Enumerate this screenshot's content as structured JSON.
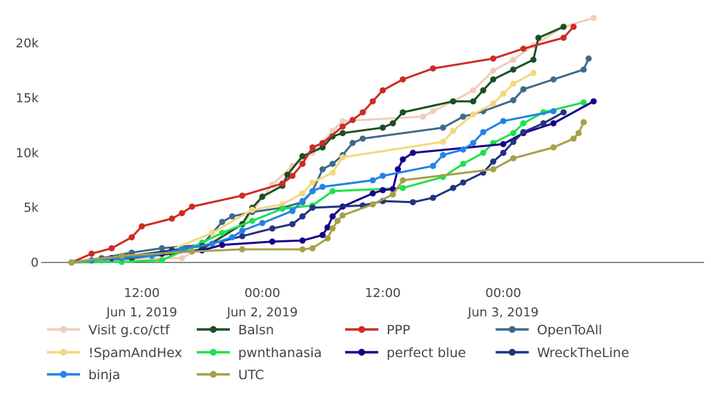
{
  "chart_data": {
    "type": "line",
    "title": "",
    "xlabel": "",
    "ylabel": "",
    "xlim": [
      "2019-06-01T02:00",
      "2019-06-03T20:00"
    ],
    "ylim": [
      0,
      23000
    ],
    "x_ticks": [
      {
        "at": "2019-06-01T12:00",
        "time": "12:00",
        "date": "Jun 1, 2019"
      },
      {
        "at": "2019-06-02T00:00",
        "time": "00:00",
        "date": "Jun 2, 2019"
      },
      {
        "at": "2019-06-02T12:00",
        "time": "12:00",
        "date": ""
      },
      {
        "at": "2019-06-03T00:00",
        "time": "00:00",
        "date": "Jun 3, 2019"
      }
    ],
    "y_ticks": [
      {
        "value": 0,
        "label": "0"
      },
      {
        "value": 5000,
        "label": "5k"
      },
      {
        "value": 10000,
        "label": "10k"
      },
      {
        "value": 15000,
        "label": "15k"
      },
      {
        "value": 20000,
        "label": "20k"
      }
    ],
    "grid": false,
    "legend_position": "bottom",
    "series": [
      {
        "name": "Visit g.co/ctf",
        "color": "#f0cdb9",
        "points": [
          [
            "2019-06-01T05:00",
            0
          ],
          [
            "2019-06-01T07:00",
            100
          ],
          [
            "2019-06-01T10:00",
            150
          ],
          [
            "2019-06-01T14:00",
            400
          ],
          [
            "2019-06-01T16:00",
            400
          ],
          [
            "2019-06-01T18:00",
            1400
          ],
          [
            "2019-06-01T22:00",
            3400
          ],
          [
            "2019-06-02T01:00",
            7100
          ],
          [
            "2019-06-02T03:00",
            8800
          ],
          [
            "2019-06-02T05:00",
            10000
          ],
          [
            "2019-06-02T07:00",
            12000
          ],
          [
            "2019-06-02T08:00",
            12900
          ],
          [
            "2019-06-02T16:00",
            13300
          ],
          [
            "2019-06-02T17:00",
            13800
          ],
          [
            "2019-06-02T19:00",
            14700
          ],
          [
            "2019-06-02T21:00",
            15700
          ],
          [
            "2019-06-02T23:00",
            17500
          ],
          [
            "2019-06-03T01:00",
            18500
          ],
          [
            "2019-06-03T03:00",
            19800
          ],
          [
            "2019-06-03T06:00",
            21500
          ],
          [
            "2019-06-03T09:00",
            22300
          ]
        ]
      },
      {
        "name": "Balsn",
        "color": "#1c4f23",
        "points": [
          [
            "2019-06-01T05:00",
            0
          ],
          [
            "2019-06-01T08:00",
            200
          ],
          [
            "2019-06-01T11:00",
            400
          ],
          [
            "2019-06-01T15:00",
            800
          ],
          [
            "2019-06-01T18:00",
            1200
          ],
          [
            "2019-06-01T22:00",
            3500
          ],
          [
            "2019-06-01T23:00",
            5000
          ],
          [
            "2019-06-02T00:00",
            6000
          ],
          [
            "2019-06-02T02:00",
            7000
          ],
          [
            "2019-06-02T02:30",
            8000
          ],
          [
            "2019-06-02T04:00",
            9700
          ],
          [
            "2019-06-02T06:00",
            10500
          ],
          [
            "2019-06-02T07:00",
            11500
          ],
          [
            "2019-06-02T08:00",
            11800
          ],
          [
            "2019-06-02T12:00",
            12300
          ],
          [
            "2019-06-02T13:00",
            12700
          ],
          [
            "2019-06-02T14:00",
            13700
          ],
          [
            "2019-06-02T19:00",
            14700
          ],
          [
            "2019-06-02T21:00",
            14700
          ],
          [
            "2019-06-02T22:00",
            15700
          ],
          [
            "2019-06-02T23:00",
            16700
          ],
          [
            "2019-06-03T01:00",
            17600
          ],
          [
            "2019-06-03T03:00",
            18500
          ],
          [
            "2019-06-03T03:30",
            20500
          ],
          [
            "2019-06-03T06:00",
            21500
          ]
        ]
      },
      {
        "name": "PPP",
        "color": "#cc2c25",
        "points": [
          [
            "2019-06-01T05:00",
            0
          ],
          [
            "2019-06-01T07:00",
            800
          ],
          [
            "2019-06-01T09:00",
            1300
          ],
          [
            "2019-06-01T11:00",
            2300
          ],
          [
            "2019-06-01T12:00",
            3300
          ],
          [
            "2019-06-01T15:00",
            4000
          ],
          [
            "2019-06-01T16:00",
            4500
          ],
          [
            "2019-06-01T17:00",
            5100
          ],
          [
            "2019-06-01T22:00",
            6100
          ],
          [
            "2019-06-02T02:00",
            7200
          ],
          [
            "2019-06-02T03:00",
            7900
          ],
          [
            "2019-06-02T04:00",
            9000
          ],
          [
            "2019-06-02T05:00",
            10500
          ],
          [
            "2019-06-02T06:00",
            10900
          ],
          [
            "2019-06-02T08:00",
            12400
          ],
          [
            "2019-06-02T09:00",
            13000
          ],
          [
            "2019-06-02T10:00",
            13700
          ],
          [
            "2019-06-02T11:00",
            14700
          ],
          [
            "2019-06-02T12:00",
            15700
          ],
          [
            "2019-06-02T14:00",
            16700
          ],
          [
            "2019-06-02T17:00",
            17700
          ],
          [
            "2019-06-02T23:00",
            18600
          ],
          [
            "2019-06-03T02:00",
            19500
          ],
          [
            "2019-06-03T06:00",
            20500
          ],
          [
            "2019-06-03T07:00",
            21500
          ]
        ]
      },
      {
        "name": "OpenToAll",
        "color": "#3f6a8a",
        "points": [
          [
            "2019-06-01T05:00",
            0
          ],
          [
            "2019-06-01T08:00",
            400
          ],
          [
            "2019-06-01T11:00",
            900
          ],
          [
            "2019-06-01T14:00",
            1300
          ],
          [
            "2019-06-01T18:00",
            1600
          ],
          [
            "2019-06-01T20:00",
            3700
          ],
          [
            "2019-06-01T21:00",
            4200
          ],
          [
            "2019-06-01T23:00",
            4600
          ],
          [
            "2019-06-02T02:00",
            5000
          ],
          [
            "2019-06-02T04:00",
            5500
          ],
          [
            "2019-06-02T05:00",
            6500
          ],
          [
            "2019-06-02T06:00",
            8500
          ],
          [
            "2019-06-02T07:00",
            9000
          ],
          [
            "2019-06-02T08:00",
            9800
          ],
          [
            "2019-06-02T09:00",
            10900
          ],
          [
            "2019-06-02T10:00",
            11300
          ],
          [
            "2019-06-02T18:00",
            12300
          ],
          [
            "2019-06-02T20:00",
            13300
          ],
          [
            "2019-06-02T22:00",
            13800
          ],
          [
            "2019-06-03T01:00",
            14800
          ],
          [
            "2019-06-03T02:00",
            15800
          ],
          [
            "2019-06-03T05:00",
            16700
          ],
          [
            "2019-06-03T08:00",
            17600
          ],
          [
            "2019-06-03T08:30",
            18600
          ]
        ]
      },
      {
        "name": "!SpamAndHex",
        "color": "#f2d87e",
        "points": [
          [
            "2019-06-01T05:00",
            0
          ],
          [
            "2019-06-01T09:00",
            300
          ],
          [
            "2019-06-01T14:00",
            800
          ],
          [
            "2019-06-01T19:00",
            2700
          ],
          [
            "2019-06-01T23:00",
            4800
          ],
          [
            "2019-06-02T02:00",
            5300
          ],
          [
            "2019-06-02T04:00",
            6300
          ],
          [
            "2019-06-02T05:00",
            7300
          ],
          [
            "2019-06-02T07:00",
            8200
          ],
          [
            "2019-06-02T08:00",
            9600
          ],
          [
            "2019-06-02T18:00",
            11000
          ],
          [
            "2019-06-02T19:00",
            12000
          ],
          [
            "2019-06-02T21:00",
            13500
          ],
          [
            "2019-06-02T23:00",
            14500
          ],
          [
            "2019-06-03T00:00",
            15400
          ],
          [
            "2019-06-03T01:00",
            16300
          ],
          [
            "2019-06-03T03:00",
            17300
          ]
        ]
      },
      {
        "name": "pwnthanasia",
        "color": "#1fe04e",
        "points": [
          [
            "2019-06-01T05:00",
            0
          ],
          [
            "2019-06-01T10:00",
            50
          ],
          [
            "2019-06-01T14:00",
            200
          ],
          [
            "2019-06-01T18:00",
            1800
          ],
          [
            "2019-06-01T20:00",
            2700
          ],
          [
            "2019-06-01T23:00",
            3800
          ],
          [
            "2019-06-02T02:00",
            4900
          ],
          [
            "2019-06-02T05:00",
            5200
          ],
          [
            "2019-06-02T07:00",
            6500
          ],
          [
            "2019-06-02T14:00",
            6800
          ],
          [
            "2019-06-02T18:00",
            7800
          ],
          [
            "2019-06-02T20:00",
            9000
          ],
          [
            "2019-06-02T22:00",
            10000
          ],
          [
            "2019-06-02T23:00",
            10900
          ],
          [
            "2019-06-03T01:00",
            11800
          ],
          [
            "2019-06-03T02:00",
            12700
          ],
          [
            "2019-06-03T04:00",
            13700
          ],
          [
            "2019-06-03T08:00",
            14600
          ]
        ]
      },
      {
        "name": "perfect blue",
        "color": "#17008a",
        "points": [
          [
            "2019-06-01T05:00",
            0
          ],
          [
            "2019-06-01T09:00",
            400
          ],
          [
            "2019-06-01T14:00",
            800
          ],
          [
            "2019-06-01T18:00",
            1100
          ],
          [
            "2019-06-01T20:00",
            1600
          ],
          [
            "2019-06-02T01:00",
            1900
          ],
          [
            "2019-06-02T04:00",
            2000
          ],
          [
            "2019-06-02T06:00",
            2500
          ],
          [
            "2019-06-02T06:30",
            3200
          ],
          [
            "2019-06-02T07:00",
            4200
          ],
          [
            "2019-06-02T08:00",
            5100
          ],
          [
            "2019-06-02T11:00",
            6300
          ],
          [
            "2019-06-02T12:00",
            6600
          ],
          [
            "2019-06-02T13:00",
            6700
          ],
          [
            "2019-06-02T13:30",
            8500
          ],
          [
            "2019-06-02T14:00",
            9400
          ],
          [
            "2019-06-02T15:00",
            10000
          ],
          [
            "2019-06-03T00:00",
            10800
          ],
          [
            "2019-06-03T02:00",
            11800
          ],
          [
            "2019-06-03T05:00",
            12700
          ],
          [
            "2019-06-03T09:00",
            14700
          ]
        ]
      },
      {
        "name": "WreckTheLine",
        "color": "#223380",
        "points": [
          [
            "2019-06-01T05:00",
            0
          ],
          [
            "2019-06-01T10:00",
            500
          ],
          [
            "2019-06-01T15:00",
            1100
          ],
          [
            "2019-06-01T18:00",
            1500
          ],
          [
            "2019-06-01T22:00",
            2400
          ],
          [
            "2019-06-02T01:00",
            3100
          ],
          [
            "2019-06-02T03:00",
            3500
          ],
          [
            "2019-06-02T04:00",
            4200
          ],
          [
            "2019-06-02T05:00",
            5000
          ],
          [
            "2019-06-02T10:00",
            5200
          ],
          [
            "2019-06-02T12:00",
            5600
          ],
          [
            "2019-06-02T15:00",
            5500
          ],
          [
            "2019-06-02T17:00",
            5900
          ],
          [
            "2019-06-02T19:00",
            6800
          ],
          [
            "2019-06-02T20:00",
            7300
          ],
          [
            "2019-06-02T22:00",
            8200
          ],
          [
            "2019-06-02T23:00",
            9200
          ],
          [
            "2019-06-03T00:00",
            10000
          ],
          [
            "2019-06-03T01:00",
            11000
          ],
          [
            "2019-06-03T02:00",
            11900
          ],
          [
            "2019-06-03T04:00",
            12700
          ],
          [
            "2019-06-03T06:00",
            13700
          ]
        ]
      },
      {
        "name": "binja",
        "color": "#2184e6",
        "points": [
          [
            "2019-06-01T05:00",
            0
          ],
          [
            "2019-06-01T07:00",
            200
          ],
          [
            "2019-06-01T10:00",
            400
          ],
          [
            "2019-06-01T13:00",
            600
          ],
          [
            "2019-06-01T16:00",
            1200
          ],
          [
            "2019-06-01T19:00",
            1700
          ],
          [
            "2019-06-01T21:00",
            2300
          ],
          [
            "2019-06-01T22:00",
            2900
          ],
          [
            "2019-06-02T00:00",
            3600
          ],
          [
            "2019-06-02T03:00",
            4700
          ],
          [
            "2019-06-02T04:00",
            5600
          ],
          [
            "2019-06-02T05:00",
            6500
          ],
          [
            "2019-06-02T06:00",
            6900
          ],
          [
            "2019-06-02T11:00",
            7500
          ],
          [
            "2019-06-02T12:00",
            7900
          ],
          [
            "2019-06-02T17:00",
            8800
          ],
          [
            "2019-06-02T18:00",
            9800
          ],
          [
            "2019-06-02T20:00",
            10300
          ],
          [
            "2019-06-02T21:00",
            10900
          ],
          [
            "2019-06-02T22:00",
            11900
          ],
          [
            "2019-06-03T00:00",
            12900
          ],
          [
            "2019-06-03T05:00",
            13800
          ]
        ]
      },
      {
        "name": "UTC",
        "color": "#a6a048",
        "points": [
          [
            "2019-06-01T05:00",
            0
          ],
          [
            "2019-06-01T10:00",
            600
          ],
          [
            "2019-06-01T17:00",
            1000
          ],
          [
            "2019-06-01T22:00",
            1200
          ],
          [
            "2019-06-02T04:00",
            1200
          ],
          [
            "2019-06-02T05:00",
            1300
          ],
          [
            "2019-06-02T06:30",
            2200
          ],
          [
            "2019-06-02T07:00",
            3100
          ],
          [
            "2019-06-02T07:30",
            3800
          ],
          [
            "2019-06-02T08:00",
            4300
          ],
          [
            "2019-06-02T11:00",
            5300
          ],
          [
            "2019-06-02T13:00",
            6200
          ],
          [
            "2019-06-02T14:00",
            7500
          ],
          [
            "2019-06-02T23:00",
            8500
          ],
          [
            "2019-06-03T01:00",
            9500
          ],
          [
            "2019-06-03T05:00",
            10500
          ],
          [
            "2019-06-03T07:00",
            11300
          ],
          [
            "2019-06-03T07:30",
            11800
          ],
          [
            "2019-06-03T08:00",
            12800
          ]
        ]
      }
    ]
  }
}
